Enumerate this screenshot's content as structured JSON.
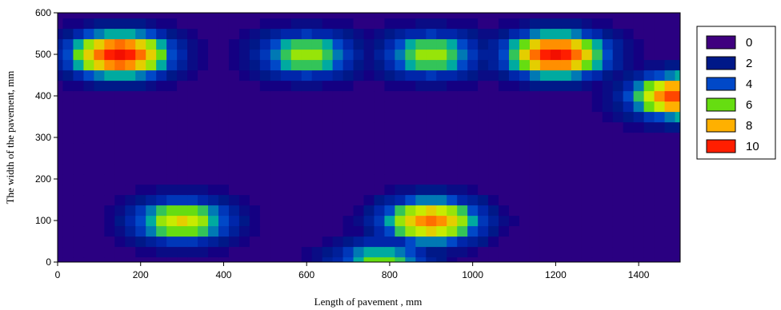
{
  "chart_data": {
    "type": "heatmap",
    "subtype": "filled-contour",
    "title": "",
    "xlabel": "Length of pavement , mm",
    "ylabel": "The width of the pavement, mm",
    "xlim": [
      0,
      1500
    ],
    "ylim": [
      0,
      600
    ],
    "x_ticks": [
      "0",
      "200",
      "400",
      "600",
      "800",
      "1000",
      "1200",
      "1400"
    ],
    "y_ticks": [
      "0",
      "100",
      "200",
      "300",
      "400",
      "500",
      "600"
    ],
    "legend": {
      "position": "right",
      "entries": [
        {
          "label": "0",
          "color": "#3f007f"
        },
        {
          "label": "2",
          "color": "#001888"
        },
        {
          "label": "4",
          "color": "#0048c8"
        },
        {
          "label": "6",
          "color": "#66dd11"
        },
        {
          "label": "8",
          "color": "#ffb000"
        },
        {
          "label": "10",
          "color": "#ff1e00"
        }
      ]
    },
    "background_value": 0.6,
    "peaks": [
      {
        "x": 150,
        "y": 500,
        "value": 10.5
      },
      {
        "x": 600,
        "y": 500,
        "value": 6.6
      },
      {
        "x": 900,
        "y": 500,
        "value": 6.6
      },
      {
        "x": 1200,
        "y": 500,
        "value": 10.3
      },
      {
        "x": 1500,
        "y": 400,
        "value": 9.6
      },
      {
        "x": 300,
        "y": 100,
        "value": 7.3
      },
      {
        "x": 900,
        "y": 100,
        "value": 8.9
      },
      {
        "x": 780,
        "y": 0,
        "value": 6.2
      }
    ],
    "grid": false
  }
}
